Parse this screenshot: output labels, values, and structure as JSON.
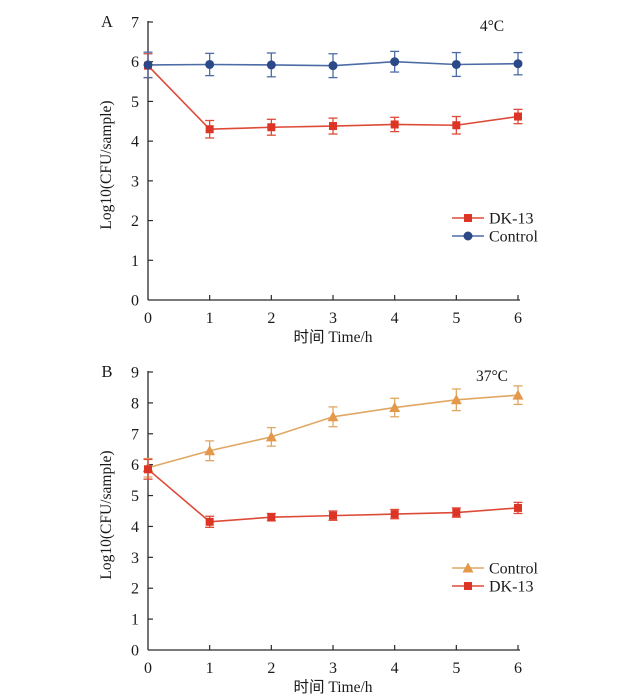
{
  "figure": {
    "background": "#ffffff",
    "text_color": "#1a1a1a",
    "axis_color": "#2a2a2a"
  },
  "chart_data": [
    {
      "type": "line",
      "panel_label": "A",
      "annotation": "4°C",
      "xlabel": "时间 Time/h",
      "ylabel": "Log10(CFU/sample)",
      "xlim": [
        0,
        6
      ],
      "ylim": [
        0,
        7
      ],
      "xticks": [
        0,
        1,
        2,
        3,
        4,
        5,
        6
      ],
      "yticks": [
        0,
        1,
        2,
        3,
        4,
        5,
        6,
        7
      ],
      "x": [
        0,
        1,
        2,
        3,
        4,
        5,
        6
      ],
      "series": [
        {
          "name": "DK-13",
          "marker": "square",
          "marker_color": "#dc3526",
          "line_color": "#dd4a38",
          "values": [
            5.9,
            4.3,
            4.35,
            4.38,
            4.42,
            4.4,
            4.62
          ],
          "errors": [
            0.3,
            0.22,
            0.2,
            0.2,
            0.18,
            0.22,
            0.18
          ]
        },
        {
          "name": "Control",
          "marker": "circle",
          "marker_color": "#2b4889",
          "line_color": "#4d6ca6",
          "values": [
            5.92,
            5.93,
            5.92,
            5.9,
            6.0,
            5.93,
            5.95
          ],
          "errors": [
            0.32,
            0.28,
            0.3,
            0.3,
            0.26,
            0.3,
            0.28
          ]
        }
      ],
      "legend": [
        "DK-13",
        "Control"
      ],
      "legend_position": "right-middle",
      "grid": false
    },
    {
      "type": "line",
      "panel_label": "B",
      "annotation": "37°C",
      "xlabel": "时间 Time/h",
      "ylabel": "Log10(CFU/sample)",
      "xlim": [
        0,
        6
      ],
      "ylim": [
        0,
        9
      ],
      "xticks": [
        0,
        1,
        2,
        3,
        4,
        5,
        6
      ],
      "yticks": [
        0,
        1,
        2,
        3,
        4,
        5,
        6,
        7,
        8,
        9
      ],
      "x": [
        0,
        1,
        2,
        3,
        4,
        5,
        6
      ],
      "series": [
        {
          "name": "Control",
          "marker": "triangle",
          "marker_color": "#e3984a",
          "line_color": "#e0a763",
          "values": [
            5.9,
            6.45,
            6.9,
            7.55,
            7.85,
            8.1,
            8.25
          ],
          "errors": [
            0.3,
            0.32,
            0.3,
            0.32,
            0.3,
            0.35,
            0.3
          ]
        },
        {
          "name": "DK-13",
          "marker": "square",
          "marker_color": "#dc3526",
          "line_color": "#dd4a38",
          "values": [
            5.85,
            4.15,
            4.3,
            4.35,
            4.4,
            4.45,
            4.6
          ],
          "errors": [
            0.32,
            0.18,
            0.12,
            0.15,
            0.15,
            0.15,
            0.18
          ]
        }
      ],
      "legend": [
        "Control",
        "DK-13"
      ],
      "legend_position": "right-middle",
      "grid": false
    }
  ]
}
